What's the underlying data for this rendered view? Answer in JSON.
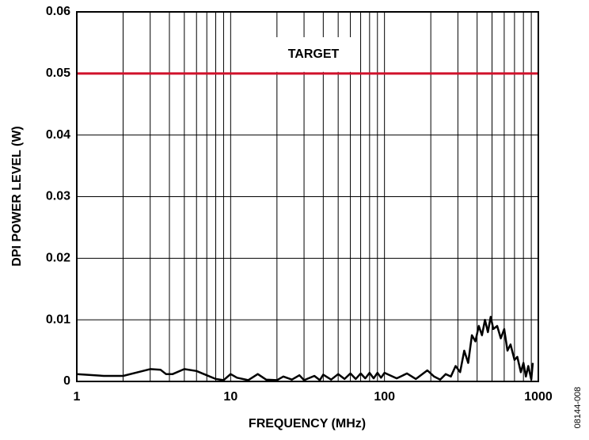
{
  "chart_data": {
    "type": "line",
    "x_label": "FREQUENCY (MHz)",
    "y_label": "DPI POWER LEVEL (W)",
    "figure_id": "08144-008",
    "xscale": "log",
    "grid": true,
    "xlim": [
      1,
      1000
    ],
    "xticks": [
      1,
      10,
      100,
      1000
    ],
    "xminor_ticks": [
      2,
      3,
      4,
      5,
      6,
      7,
      8,
      9,
      20,
      30,
      40,
      50,
      60,
      70,
      80,
      90,
      200,
      300,
      400,
      500,
      600,
      700,
      800,
      900
    ],
    "ylim": [
      0,
      0.06
    ],
    "yticks": [
      0,
      0.01,
      0.02,
      0.03,
      0.04,
      0.05,
      0.06
    ],
    "target": {
      "label": "TARGET",
      "value": 0.05,
      "color": "#d0112b"
    },
    "x": [
      1,
      1.5,
      2,
      2.5,
      3,
      3.5,
      3.8,
      4.2,
      5,
      6,
      7,
      8,
      9,
      10,
      11,
      13,
      15,
      17,
      20,
      22,
      25,
      28,
      30,
      35,
      38,
      40,
      45,
      50,
      55,
      60,
      65,
      70,
      75,
      80,
      85,
      90,
      95,
      100,
      120,
      140,
      160,
      190,
      210,
      230,
      250,
      270,
      290,
      310,
      330,
      350,
      370,
      390,
      410,
      430,
      450,
      470,
      490,
      510,
      540,
      570,
      600,
      630,
      660,
      700,
      730,
      770,
      800,
      830,
      860,
      900,
      920
    ],
    "series": [
      {
        "color": "#000000",
        "values": [
          0.0012,
          0.0009,
          0.0009,
          0.0015,
          0.002,
          0.0019,
          0.0012,
          0.0012,
          0.002,
          0.0017,
          0.001,
          0.0004,
          0.0002,
          0.0012,
          0.0006,
          0.0002,
          0.0012,
          0.0003,
          0.0002,
          0.0008,
          0.0003,
          0.001,
          0.0002,
          0.0009,
          0.0002,
          0.0011,
          0.0003,
          0.0012,
          0.0004,
          0.0013,
          0.0004,
          0.0013,
          0.0005,
          0.0014,
          0.0005,
          0.0014,
          0.0006,
          0.0014,
          0.0005,
          0.0013,
          0.0004,
          0.0018,
          0.0008,
          0.0003,
          0.0012,
          0.0008,
          0.0025,
          0.0015,
          0.005,
          0.003,
          0.0075,
          0.0065,
          0.009,
          0.0075,
          0.01,
          0.008,
          0.0105,
          0.0085,
          0.009,
          0.007,
          0.0085,
          0.005,
          0.006,
          0.0035,
          0.004,
          0.0015,
          0.003,
          0.0008,
          0.0025,
          0.0003,
          0.003
        ]
      }
    ]
  }
}
